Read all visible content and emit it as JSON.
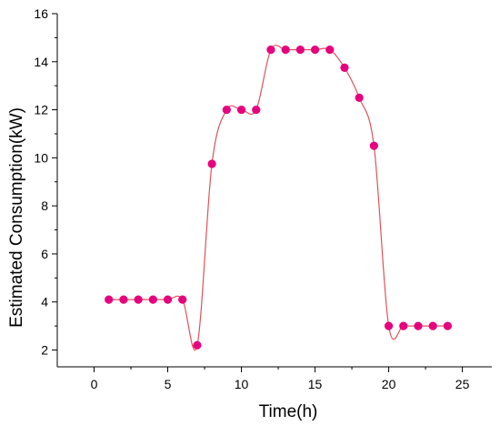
{
  "chart_data": {
    "type": "line",
    "title": "",
    "xlabel": "Time(h)",
    "ylabel": "Estimated Consumption(kW)",
    "xlim": [
      -2.5,
      27
    ],
    "ylim": [
      1.3,
      16
    ],
    "x_ticks": [
      0,
      5,
      10,
      15,
      20,
      25
    ],
    "y_ticks": [
      2,
      4,
      6,
      8,
      10,
      12,
      14,
      16
    ],
    "grid": false,
    "legend": "none",
    "colors": {
      "marker": "#e6007e",
      "line": "#e0525a"
    },
    "series": [
      {
        "x": [
          1,
          2,
          3,
          4,
          5,
          6,
          7,
          8,
          9,
          10,
          11,
          12,
          13,
          14,
          15,
          16,
          17,
          18,
          19,
          20,
          21,
          22,
          23,
          24
        ],
        "values": [
          4.1,
          4.1,
          4.1,
          4.1,
          4.1,
          4.1,
          2.2,
          9.75,
          12.0,
          12.0,
          12.0,
          14.5,
          14.5,
          14.5,
          14.5,
          14.5,
          13.75,
          12.5,
          10.5,
          3.0,
          3.0,
          3.0,
          3.0,
          3.0
        ]
      }
    ]
  }
}
